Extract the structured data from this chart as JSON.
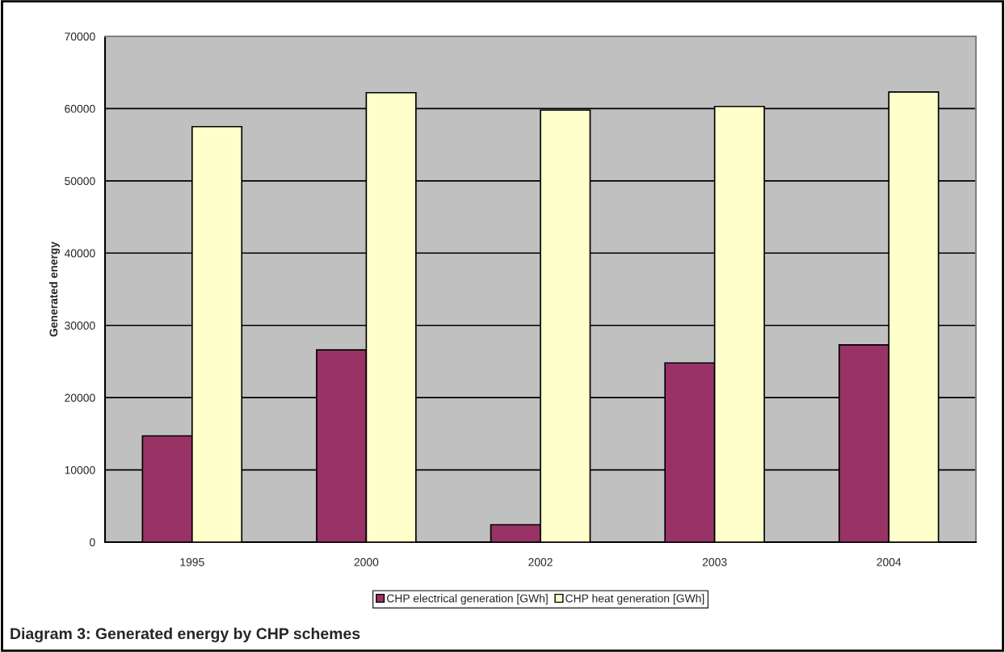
{
  "chart_data": {
    "type": "bar",
    "title": "Diagram 3: Generated energy by CHP schemes",
    "ylabel": "Generated energy",
    "categories": [
      "1995",
      "2000",
      "2002",
      "2003",
      "2004"
    ],
    "series": [
      {
        "name": "CHP electrical generation [GWh]",
        "color": "#993366",
        "values": [
          14700,
          26600,
          2400,
          24800,
          27300
        ]
      },
      {
        "name": "CHP heat generation [GWh]",
        "color": "#ffffcc",
        "values": [
          57500,
          62200,
          59800,
          60300,
          62300
        ]
      }
    ],
    "ylim": [
      0,
      70000
    ],
    "yticks": [
      0,
      10000,
      20000,
      30000,
      40000,
      50000,
      60000,
      70000
    ],
    "grid": "y",
    "legend": "bottom"
  }
}
